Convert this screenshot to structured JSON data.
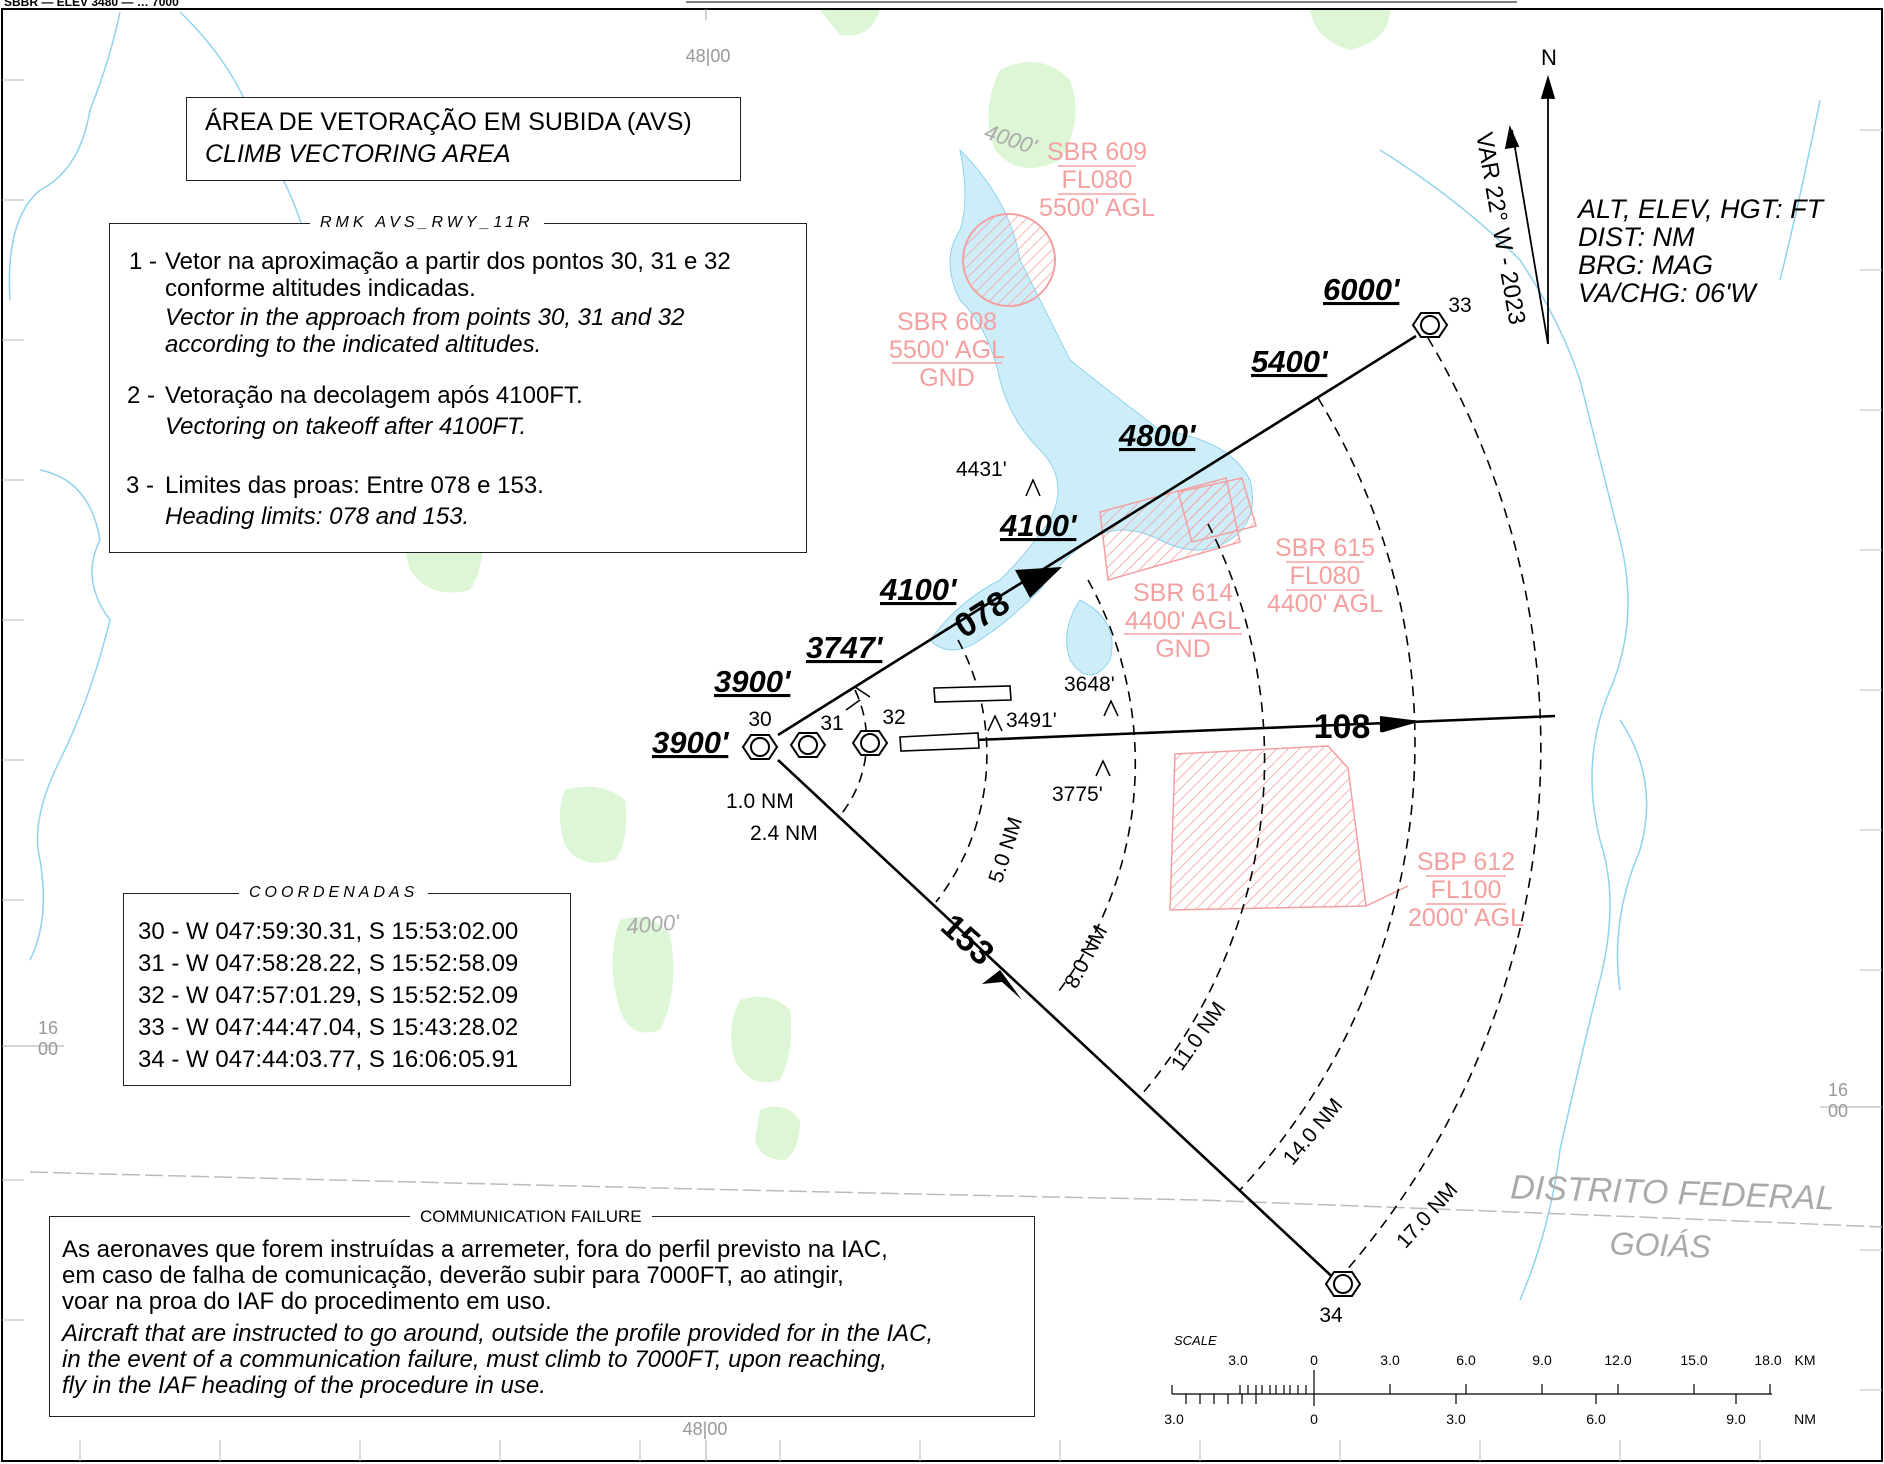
{
  "header": {
    "top_left_text": "SBBR — ELEV 3480 — … 7000",
    "top_center_box": ""
  },
  "title": {
    "pt": "ÁREA DE VETORAÇÃO EM SUBIDA (AVS)",
    "en": "CLIMB VECTORING AREA"
  },
  "remarks": {
    "legend": "RMK AVS_RWY_11R",
    "items": [
      {
        "num": "1 -",
        "pt_1": "Vetor na aproximação a partir dos pontos 30, 31 e 32",
        "pt_2": "conforme altitudes indicadas.",
        "en_1": "Vector in the approach from points 30, 31 and 32",
        "en_2": "according to the indicated altitudes."
      },
      {
        "num": "2 -",
        "pt_1": "Vetoração na decolagem após 4100FT.",
        "en_1": "Vectoring on takeoff after 4100FT."
      },
      {
        "num": "3 -",
        "pt_1": "Limites das proas: Entre 078 e 153.",
        "en_1": "Heading limits: 078 and 153."
      }
    ]
  },
  "units": [
    "ALT, ELEV, HGT: FT",
    "DIST: NM",
    "BRG: MAG",
    "VA/CHG: 06'W"
  ],
  "north": {
    "label": "N",
    "variation": "VAR 22° W - 2023"
  },
  "coordinates": {
    "legend": "COORDENADAS",
    "rows": [
      "30 - W 047:59:30.31, S 15:53:02.00",
      "31 - W 047:58:28.22, S 15:52:58.09",
      "32 - W 047:57:01.29, S 15:52:52.09",
      "33 - W 047:44:47.04, S 15:43:28.02",
      "34 - W 047:44:03.77, S 16:06:05.91"
    ]
  },
  "comm_failure": {
    "legend": "COMMUNICATION FAILURE",
    "pt": [
      "As aeronaves que forem instruídas a arremeter, fora do perfil previsto na IAC,",
      "em caso de falha de comunicação, deverão subir para 7000FT, ao atingir,",
      "voar na proa do IAF do procedimento em uso."
    ],
    "en": [
      "Aircraft that are instructed to go around, outside the profile provided for in the IAC,",
      "in the event of a communication failure, must climb to 7000FT, upon reaching,",
      "fly in the IAF heading of the procedure in use."
    ]
  },
  "points": {
    "p30": "30",
    "p31": "31",
    "p32": "32",
    "p33": "33",
    "p34": "34"
  },
  "headings": {
    "h078": "078",
    "h108": "108",
    "h153": "153"
  },
  "altitudes": [
    "3900'",
    "3900'",
    "3747'",
    "4100'",
    "4100'",
    "4800'",
    "5400'",
    "6000'"
  ],
  "obstacles": [
    {
      "label": "4431'"
    },
    {
      "label": "3648'"
    },
    {
      "label": "3491'"
    },
    {
      "label": "3775'"
    }
  ],
  "arcs": [
    "1.0 NM",
    "2.4 NM",
    "5.0 NM",
    "8.0 NM",
    "11.0 NM",
    "14.0 NM",
    "17.0 NM"
  ],
  "restricted_areas": [
    {
      "lines": [
        "SBR 609",
        "FL080",
        "5500' AGL"
      ]
    },
    {
      "lines": [
        "SBR 608",
        "5500' AGL",
        "GND"
      ]
    },
    {
      "lines": [
        "SBR 614",
        "4400' AGL",
        "GND"
      ]
    },
    {
      "lines": [
        "SBR 615",
        "FL080",
        "4400' AGL"
      ]
    },
    {
      "lines": [
        "SBP 612",
        "FL100",
        "2000' AGL"
      ]
    }
  ],
  "terrain_contours": [
    "4000'",
    "4000'"
  ],
  "grid_labels": {
    "top": "48|00",
    "bottom": "48|00",
    "left_top": "16",
    "left_bottom": "00",
    "right_top": "16",
    "right_bottom": "00"
  },
  "regions": {
    "df": "DISTRITO FEDERAL",
    "go": "GOIÁS"
  },
  "scale": {
    "label": "SCALE",
    "km_labels": [
      "3.0",
      "0",
      "3.0",
      "6.0",
      "9.0",
      "12.0",
      "15.0",
      "18.0"
    ],
    "km_unit": "KM",
    "nm_labels": [
      "3.0",
      "0",
      "3.0",
      "6.0",
      "9.0"
    ],
    "nm_unit": "NM"
  },
  "colors": {
    "restricted": "#f4a0a0",
    "water": "#cdeef9",
    "river": "#8fd3ee",
    "vegetation": "#dcf6d6"
  }
}
